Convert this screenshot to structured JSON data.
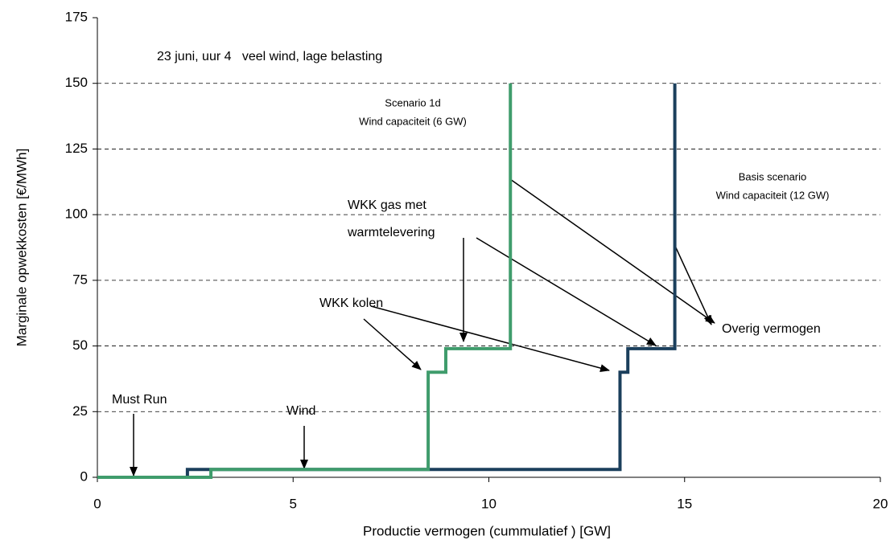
{
  "chart_data": {
    "type": "line",
    "step": true,
    "x_label": "Productie vermogen (cummulatief ) [GW]",
    "y_label": "Marginale opwekkosten [€/MWh]",
    "xlim": [
      0,
      20
    ],
    "xticks": [
      0,
      5,
      10,
      15,
      20
    ],
    "ylim": [
      0,
      175
    ],
    "yticks": [
      0,
      25,
      50,
      75,
      100,
      125,
      150,
      175
    ],
    "grid": true,
    "series": [
      {
        "color": "#1b3f5c",
        "x": [
          0,
          2.3,
          2.3,
          13.35,
          13.35,
          13.55,
          13.55,
          14.75,
          14.75,
          14.75
        ],
        "values": [
          0,
          0,
          3,
          3,
          40,
          40,
          49,
          49,
          63,
          150
        ]
      },
      {
        "color": "#3f9c6c",
        "x": [
          0,
          2.9,
          2.9,
          8.45,
          8.45,
          8.9,
          8.9,
          10.55,
          10.55
        ],
        "values": [
          0,
          0,
          3,
          3,
          40,
          40,
          49,
          49,
          150
        ]
      }
    ],
    "annotations": [
      "23 juni, uur 4   veel wind, lage belasting",
      "Scenario 1d",
      "Wind capaciteit (6 GW)",
      "Basis scenario",
      "Wind capaciteit (12 GW)",
      "WKK gas met",
      "warmtelevering",
      "WKK kolen",
      "Overig vermogen",
      "Must Run",
      "Wind"
    ]
  }
}
